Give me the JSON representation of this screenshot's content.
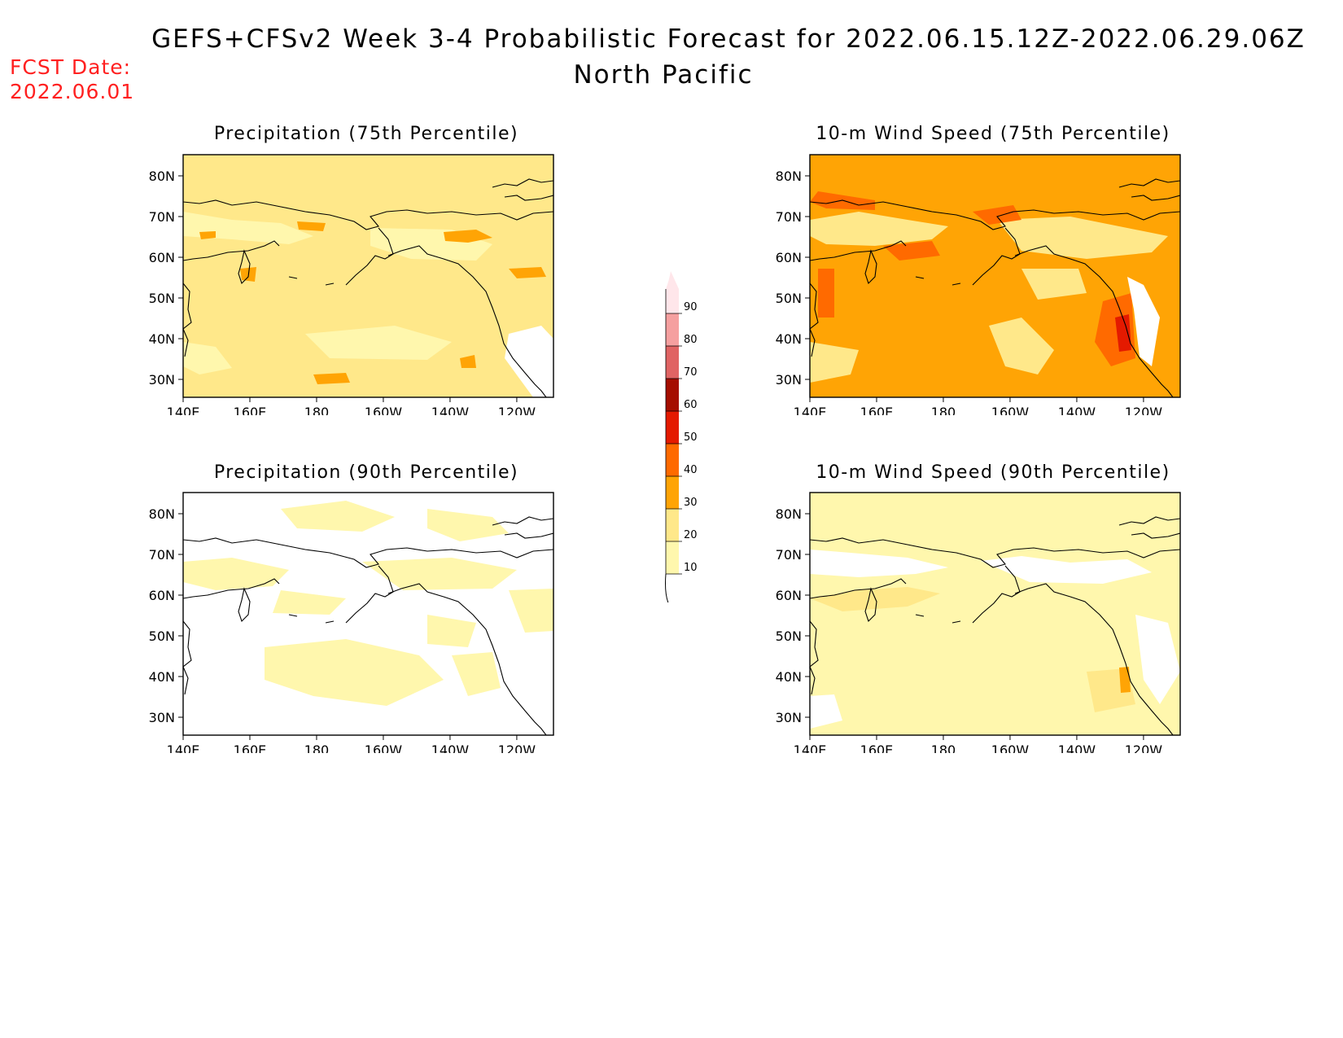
{
  "header": {
    "title": "GEFS+CFSv2 Week 3-4 Probabilistic Forecast for 2022.06.15.12Z-2022.06.29.06Z",
    "subtitle": "North Pacific",
    "fcst_label": "FCST Date:",
    "fcst_date": "2022.06.01"
  },
  "axes": {
    "x_ticks": [
      "140E",
      "160E",
      "180",
      "160W",
      "140W",
      "120W"
    ],
    "y_ticks": [
      "80N",
      "70N",
      "60N",
      "50N",
      "40N",
      "30N"
    ]
  },
  "panels": [
    {
      "id": "precip75",
      "title": "Precipitation (75th Percentile)",
      "base_color": "#ffe88a",
      "level": "20-30"
    },
    {
      "id": "wind75",
      "title": "10-m Wind Speed (75th Percentile)",
      "base_color": "#ffa405",
      "level": "30-40"
    },
    {
      "id": "precip90",
      "title": "Precipitation (90th Percentile)",
      "base_color": "#ffffff",
      "level": "0-10"
    },
    {
      "id": "wind90",
      "title": "10-m Wind Speed (90th Percentile)",
      "base_color": "#fff7ad",
      "level": "10-20"
    }
  ],
  "colorbar": {
    "labels": [
      "10",
      "20",
      "30",
      "40",
      "50",
      "60",
      "70",
      "80",
      "90"
    ],
    "colors": [
      "#fff7ad",
      "#ffe88a",
      "#ffa405",
      "#ff6a00",
      "#e41a00",
      "#a50e00",
      "#e06464",
      "#f5a0a0",
      "#ffe6ea"
    ]
  }
}
